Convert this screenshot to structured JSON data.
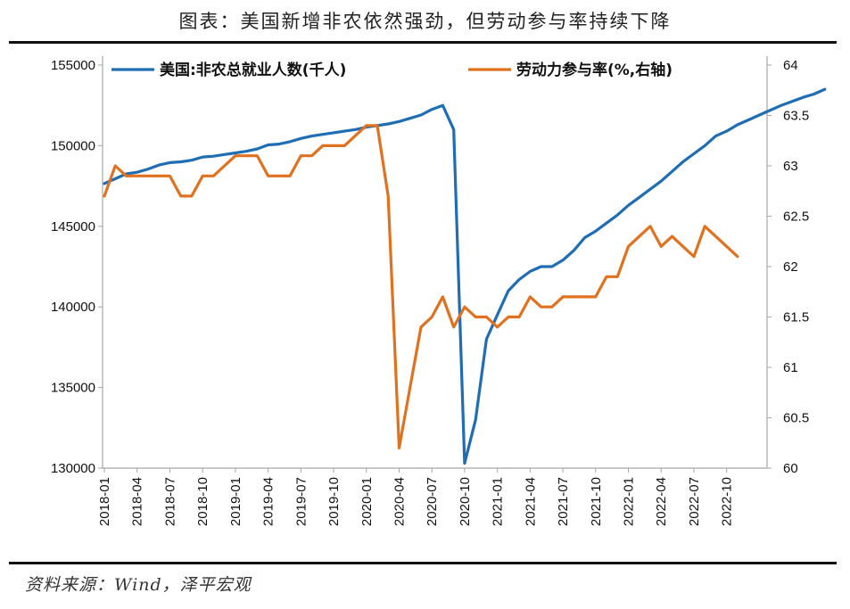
{
  "title": "图表：美国新增非农依然强劲，但劳动参与率持续下降",
  "source": "资料来源：Wind，泽平宏观",
  "colors": {
    "employment": "#1f6db3",
    "lfpr": "#e0711f",
    "axis": "#a6a6a6",
    "rule": "#111111"
  },
  "chart_data": {
    "type": "line",
    "legend_position": "top",
    "grid": false,
    "x_tick_labels": [
      "2018-01",
      "2018-04",
      "2018-07",
      "2018-10",
      "2019-01",
      "2019-04",
      "2019-07",
      "2019-10",
      "2020-01",
      "2020-04",
      "2020-07",
      "2020-10",
      "2021-01",
      "2021-04",
      "2021-07",
      "2021-10",
      "2022-01",
      "2022-04",
      "2022-07",
      "2022-10"
    ],
    "x_months_start": "2018-01",
    "y_left": {
      "ylim": [
        130000,
        155000
      ],
      "ticks": [
        130000,
        135000,
        140000,
        145000,
        150000,
        155000
      ]
    },
    "y_right": {
      "ylim": [
        60,
        64
      ],
      "ticks": [
        "60",
        "60.5",
        "61",
        "61.5",
        "62",
        "62.5",
        "63",
        "63.5",
        "64"
      ]
    },
    "series": [
      {
        "name": "美国:非农总就业人数(千人)",
        "axis": "left",
        "values": [
          147650,
          147950,
          148250,
          148350,
          148550,
          148800,
          148950,
          149000,
          149100,
          149300,
          149350,
          149450,
          149550,
          149650,
          149800,
          150050,
          150100,
          150250,
          150450,
          150600,
          150700,
          150800,
          150900,
          151000,
          151150,
          151250,
          151350,
          151500,
          151700,
          151900,
          152250,
          152500,
          151000,
          130300,
          133000,
          138000,
          139500,
          141000,
          141700,
          142200,
          142500,
          142500,
          142900,
          143500,
          144300,
          144700,
          145200,
          145700,
          146300,
          146800,
          147300,
          147800,
          148400,
          149000,
          149500,
          150000,
          150600,
          150900,
          151300,
          151600,
          151900,
          152200,
          152500,
          152750,
          153000,
          153200,
          153500
        ]
      },
      {
        "name": "劳动力参与率(%,右轴)",
        "axis": "right",
        "values": [
          62.7,
          63.0,
          62.9,
          62.9,
          62.9,
          62.9,
          62.9,
          62.7,
          62.7,
          62.9,
          62.9,
          63.0,
          63.1,
          63.1,
          63.1,
          62.9,
          62.9,
          62.9,
          63.1,
          63.1,
          63.2,
          63.2,
          63.2,
          63.3,
          63.4,
          63.4,
          62.7,
          60.2,
          60.8,
          61.4,
          61.5,
          61.7,
          61.4,
          61.6,
          61.5,
          61.5,
          61.4,
          61.5,
          61.5,
          61.7,
          61.6,
          61.6,
          61.7,
          61.7,
          61.7,
          61.7,
          61.9,
          61.9,
          62.2,
          62.3,
          62.4,
          62.2,
          62.3,
          62.2,
          62.1,
          62.4,
          62.3,
          62.2,
          62.1
        ]
      }
    ]
  }
}
